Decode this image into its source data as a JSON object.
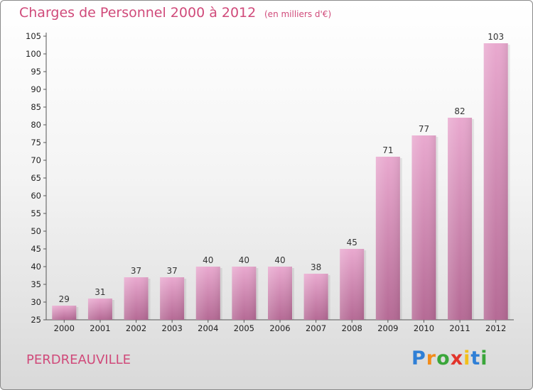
{
  "header": {
    "title": "Charges de Personnel 2000 à 2012",
    "subtitle": "(en milliers d'€)"
  },
  "footer": {
    "commune": "PERDREAUVILLE",
    "logo_text": "Proxiti",
    "logo_letters": [
      {
        "char": "P",
        "color": "#2f7fd6"
      },
      {
        "char": "r",
        "color": "#f28c1a"
      },
      {
        "char": "o",
        "color": "#3aa63a"
      },
      {
        "char": "x",
        "color": "#e2342b"
      },
      {
        "char": "i",
        "color": "#f2c01a"
      },
      {
        "char": "t",
        "color": "#2f7fd6"
      },
      {
        "char": "i",
        "color": "#3aa63a"
      }
    ]
  },
  "colors": {
    "accent": "#d04a7a",
    "bar_top": "#e9a9cf",
    "bar_bottom": "#b56a95"
  },
  "chart_data": {
    "type": "bar",
    "title": "Charges de Personnel 2000 à 2012",
    "subtitle": "(en milliers d'€)",
    "categories": [
      "2000",
      "2001",
      "2002",
      "2003",
      "2004",
      "2005",
      "2006",
      "2007",
      "2008",
      "2009",
      "2010",
      "2011",
      "2012"
    ],
    "values": [
      29,
      31,
      37,
      37,
      40,
      40,
      40,
      38,
      45,
      71,
      77,
      82,
      103
    ],
    "ylim": [
      25,
      105
    ],
    "yticks": [
      25,
      30,
      35,
      40,
      45,
      50,
      55,
      60,
      65,
      70,
      75,
      80,
      85,
      90,
      95,
      100,
      105
    ],
    "grid": false,
    "data_labels": true
  }
}
